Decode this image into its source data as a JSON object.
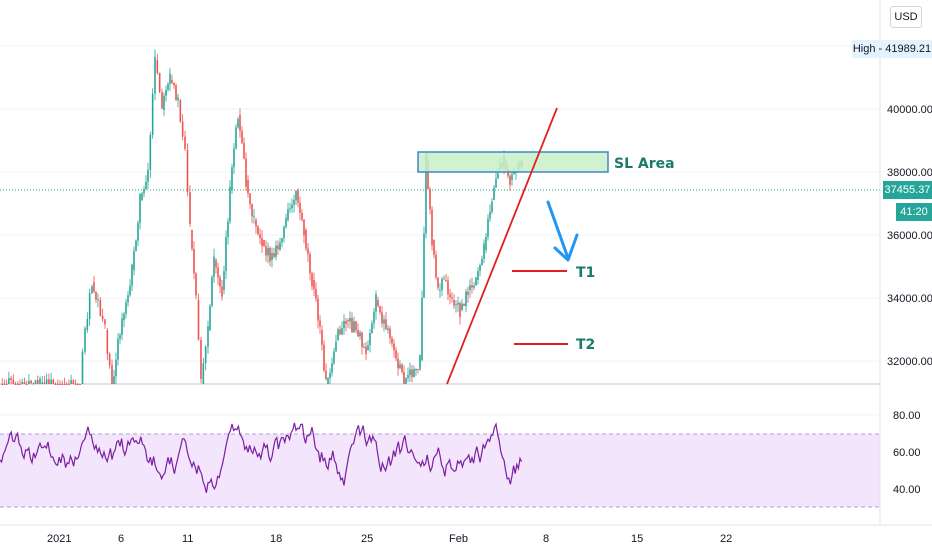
{
  "currency_label": "USD",
  "high_label": "High - 41989.21",
  "last_price_label": "37455.37",
  "countdown_label": "41:20",
  "colors": {
    "up": "#26a69a",
    "down": "#ef5350",
    "rsi_line": "#7b1fa2",
    "rsi_band": "#f3e5fb",
    "annotation_red": "#e02020",
    "annotation_blue": "#2196f3",
    "sl_fill": "#c8f0c8",
    "sl_border": "#3f88c5"
  },
  "chart_data": [
    {
      "type": "candlestick",
      "x_tick_labels": [
        "2021",
        "6",
        "11",
        "18",
        "25",
        "Feb",
        "8",
        "15",
        "22"
      ],
      "y_tick_labels": [
        "32000.00",
        "34000.00",
        "36000.00",
        "38000.00",
        "40000.00"
      ],
      "ylim": [
        31000,
        42000
      ],
      "last_price": 37455.37,
      "high": 41989.21,
      "legend": "none",
      "annotations": {
        "sl_area": {
          "label": "SL Area",
          "low": 38000,
          "high": 38600
        },
        "targets": [
          {
            "label": "T1",
            "price": 35000
          },
          {
            "label": "T2",
            "price": 32700
          }
        ],
        "trendline": {
          "from": 31000,
          "to": 40100
        }
      }
    },
    {
      "type": "line",
      "y_tick_labels": [
        "40.00",
        "60.00",
        "80.00"
      ],
      "ylim": [
        26,
        92
      ],
      "band": [
        30,
        70
      ],
      "legend": "none"
    }
  ]
}
